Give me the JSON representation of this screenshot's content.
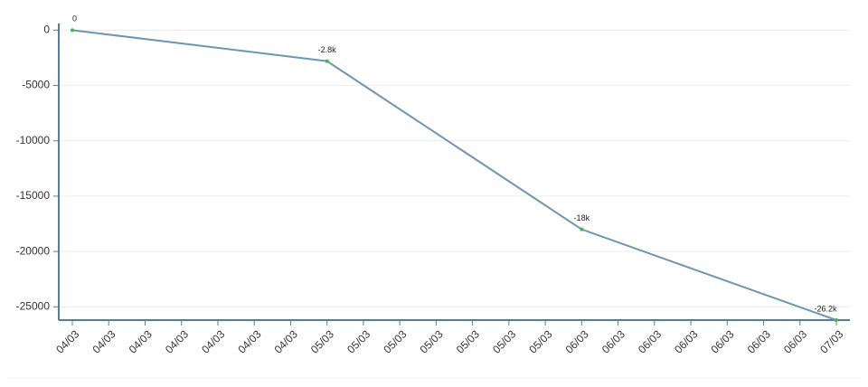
{
  "chart_data": {
    "type": "line",
    "categories": [
      "04/03",
      "04/03",
      "04/03",
      "04/03",
      "04/03",
      "04/03",
      "04/03",
      "05/03",
      "05/03",
      "05/03",
      "05/03",
      "05/03",
      "05/03",
      "05/03",
      "06/03",
      "06/03",
      "06/03",
      "06/03",
      "06/03",
      "06/03",
      "06/03",
      "07/03"
    ],
    "x": [
      "04/03",
      "05/03",
      "06/03",
      "07/03"
    ],
    "values": [
      0,
      -2800,
      -18000,
      -26200
    ],
    "value_labels": [
      "0",
      "-2.8k",
      "-18k",
      "-26.2k"
    ],
    "color": "#6f96b0",
    "marker_color": "#4caf50",
    "ylim": [
      -26200,
      600
    ],
    "yticks": [
      0,
      -5000,
      -10000,
      -15000,
      -20000,
      -25000
    ],
    "grid": true
  }
}
